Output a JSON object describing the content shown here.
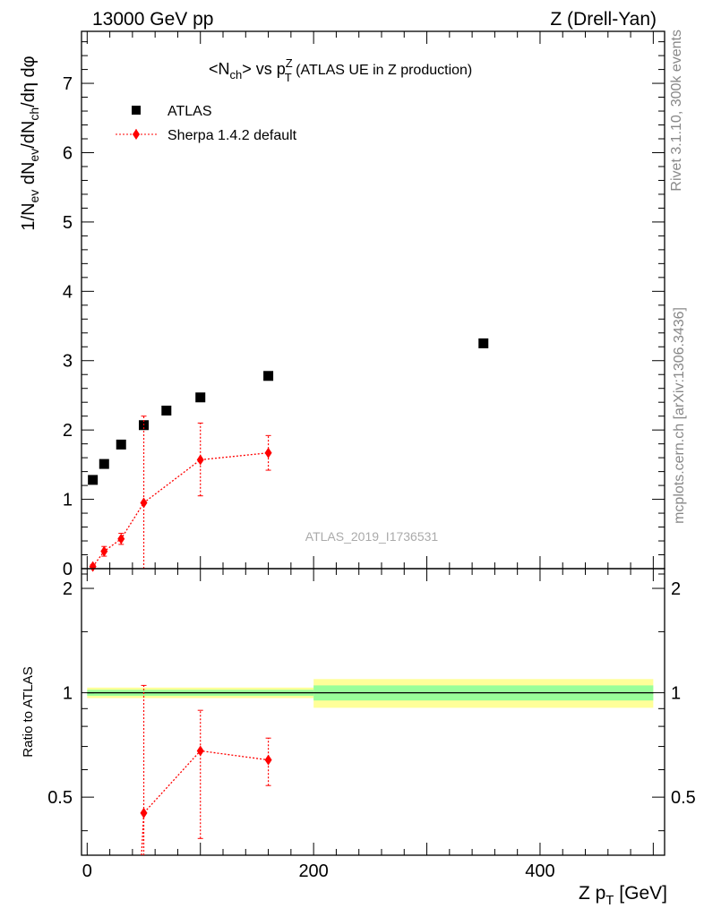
{
  "header": {
    "left": "13000 GeV pp",
    "right": "Z (Drell-Yan)"
  },
  "side_labels": {
    "rivet": "Rivet 3.1.10,  300k events",
    "mcplots": "mcplots.cern.ch [arXiv:1306.3436]"
  },
  "watermark": "ATLAS_2019_I1736531",
  "chart_data": [
    {
      "type": "scatter",
      "panel": "main",
      "title": {
        "n": "<N",
        "n_sub": "ch",
        "vs": "> vs p",
        "p_sup": "Z",
        "p_sub": "T",
        "suffix": " (ATLAS UE in Z production)"
      },
      "ylabel": {
        "p1": "1/N",
        "s1": "ev",
        "p2": " dN",
        "s2": "ev",
        "p3": "/dN",
        "s3": "ch",
        "p4": "/dη dφ"
      },
      "xlim": [
        -5,
        510
      ],
      "ylim": [
        0,
        7.75
      ],
      "yticks": [
        0,
        1,
        2,
        3,
        4,
        5,
        6,
        7
      ],
      "legend": {
        "position": "top-left",
        "entries": [
          "ATLAS",
          "Sherpa 1.4.2 default"
        ]
      },
      "series": [
        {
          "name": "ATLAS",
          "color": "#000000",
          "marker": "square",
          "x": [
            5,
            15,
            30,
            50,
            70,
            100,
            160,
            350
          ],
          "y": [
            1.28,
            1.51,
            1.79,
            2.07,
            2.28,
            2.47,
            2.78,
            3.25
          ]
        },
        {
          "name": "Sherpa 1.4.2 default",
          "color": "#ff0000",
          "marker": "diamond",
          "line": "dotted",
          "x": [
            5,
            15,
            30,
            50,
            100,
            160
          ],
          "y": [
            0.03,
            0.25,
            0.43,
            0.95,
            1.57,
            1.67
          ],
          "err_lo": [
            0.03,
            0.07,
            0.08,
            0.95,
            0.52,
            0.25
          ],
          "err_hi": [
            0.03,
            0.07,
            0.08,
            1.25,
            0.53,
            0.25
          ]
        }
      ]
    },
    {
      "type": "scatter",
      "panel": "ratio",
      "ylabel": "Ratio to ATLAS",
      "xlabel": "Z p",
      "xlabel_sub": "T",
      "xlabel_unit": " [GeV]",
      "xlim": [
        -5,
        510
      ],
      "ylim": [
        0.34,
        2.28
      ],
      "xticks": [
        0,
        200,
        400
      ],
      "yticks": [
        0.5,
        1,
        2
      ],
      "ytick_labels": [
        "0.5",
        "1",
        "2"
      ],
      "bands": [
        {
          "x0": 0,
          "x1": 200,
          "stat": 0.02,
          "total": 0.035
        },
        {
          "x0": 200,
          "x1": 500,
          "stat": 0.05,
          "total": 0.095
        }
      ],
      "series": [
        {
          "name": "Sherpa 1.4.2 default",
          "color": "#ff0000",
          "marker": "diamond",
          "line": "dotted",
          "x": [
            50,
            100,
            160
          ],
          "y": [
            0.45,
            0.68,
            0.64
          ],
          "err_lo": [
            0.45,
            0.3,
            0.1
          ],
          "err_hi": [
            0.6,
            0.21,
            0.1
          ]
        }
      ]
    }
  ]
}
